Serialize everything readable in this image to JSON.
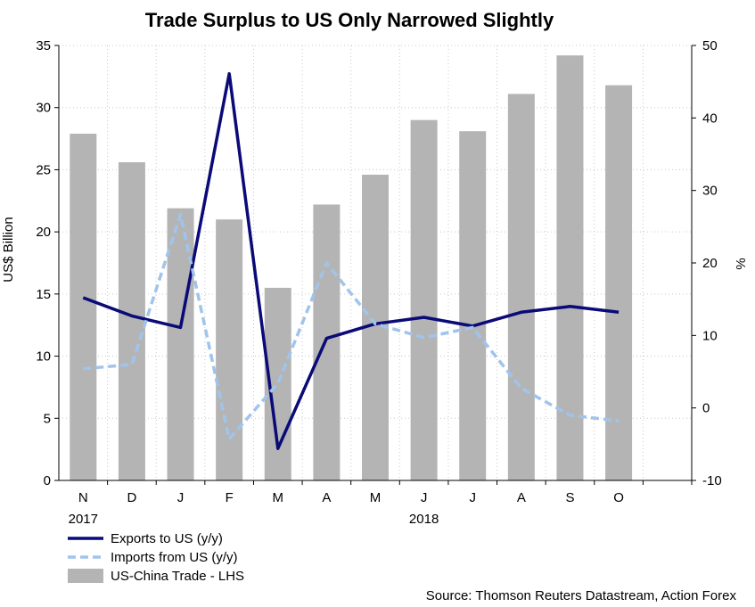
{
  "chart_data": {
    "type": "bar",
    "title": "Trade Surplus to US Only Narrowed Slightly",
    "categories": [
      "N",
      "D",
      "J",
      "F",
      "M",
      "A",
      "M",
      "J",
      "J",
      "A",
      "S",
      "O"
    ],
    "year_labels": [
      {
        "label": "2017",
        "category_index": 0
      },
      {
        "label": "2018",
        "category_index": 7
      }
    ],
    "ylabel_left": "US$ Billion",
    "ylabel_right": "%",
    "ylim_left": [
      0,
      35
    ],
    "ylim_right": [
      -10,
      50
    ],
    "yticks_left": [
      "0",
      "5",
      "10",
      "15",
      "20",
      "25",
      "30",
      "35"
    ],
    "yticks_right": [
      "-10",
      "0",
      "10",
      "20",
      "30",
      "40",
      "50"
    ],
    "grid": true,
    "series": [
      {
        "name": "US-China Trade - LHS",
        "type": "bar",
        "axis": "left",
        "color": "#b4b4b4",
        "values": [
          27.9,
          25.6,
          21.9,
          21.0,
          15.5,
          22.2,
          24.6,
          29.0,
          28.1,
          31.1,
          34.2,
          31.8
        ]
      },
      {
        "name": "Exports to US (y/y)",
        "type": "line",
        "axis": "right",
        "color": "#0a0a78",
        "dash": "solid",
        "values": [
          15.2,
          12.7,
          11.1,
          46.1,
          -5.6,
          9.6,
          11.6,
          12.5,
          11.3,
          13.2,
          14.0,
          13.2
        ]
      },
      {
        "name": "Imports from US (y/y)",
        "type": "line",
        "axis": "right",
        "color": "#a0c4ec",
        "dash": "dashed",
        "values": [
          5.4,
          6.0,
          26.7,
          -4.3,
          3.4,
          20.0,
          11.6,
          9.7,
          11.1,
          2.7,
          -1.0,
          -1.8
        ]
      }
    ],
    "legend": {
      "placement": "bottom-left",
      "entries": [
        "Exports to US (y/y)",
        "Imports from US (y/y)",
        "US-China Trade - LHS"
      ]
    },
    "source": "Source: Thomson Reuters Datastream, Action Forex"
  }
}
